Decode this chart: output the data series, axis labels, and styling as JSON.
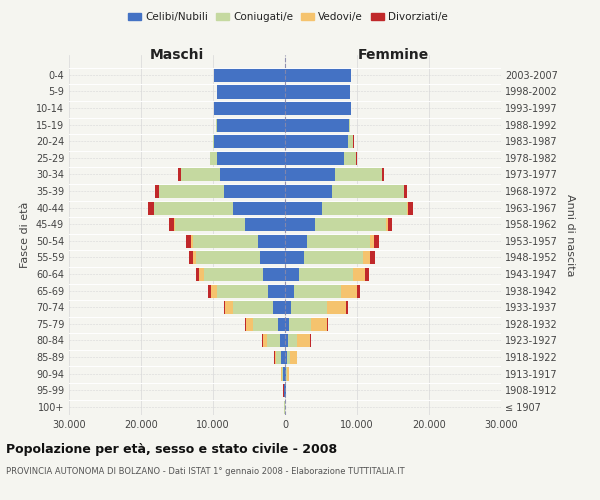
{
  "age_groups": [
    "100+",
    "95-99",
    "90-94",
    "85-89",
    "80-84",
    "75-79",
    "70-74",
    "65-69",
    "60-64",
    "55-59",
    "50-54",
    "45-49",
    "40-44",
    "35-39",
    "30-34",
    "25-29",
    "20-24",
    "15-19",
    "10-14",
    "5-9",
    "0-4"
  ],
  "birth_years": [
    "≤ 1907",
    "1908-1912",
    "1913-1917",
    "1918-1922",
    "1923-1927",
    "1928-1932",
    "1933-1937",
    "1938-1942",
    "1943-1947",
    "1948-1952",
    "1953-1957",
    "1958-1962",
    "1963-1967",
    "1968-1972",
    "1973-1977",
    "1978-1982",
    "1983-1987",
    "1988-1992",
    "1993-1997",
    "1998-2002",
    "2003-2007"
  ],
  "colors": {
    "celibi": "#4472c4",
    "coniugati": "#c5d9a0",
    "vedovi": "#f5c36e",
    "divorziati": "#c0282a"
  },
  "maschi_celibi": [
    50,
    120,
    280,
    500,
    700,
    1000,
    1700,
    2400,
    3000,
    3500,
    3800,
    5500,
    7200,
    8500,
    9000,
    9500,
    9800,
    9500,
    9800,
    9500,
    9800
  ],
  "maschi_coniugati": [
    20,
    60,
    200,
    700,
    1800,
    3500,
    5500,
    7000,
    8200,
    8800,
    9000,
    9800,
    11000,
    9000,
    5500,
    900,
    200,
    20,
    5,
    0,
    0
  ],
  "maschi_vedovi": [
    8,
    25,
    70,
    250,
    600,
    900,
    1100,
    900,
    700,
    500,
    250,
    130,
    60,
    25,
    8,
    3,
    1,
    0,
    0,
    0,
    0
  ],
  "maschi_divorziati": [
    3,
    8,
    15,
    25,
    45,
    90,
    180,
    380,
    480,
    550,
    650,
    750,
    750,
    550,
    350,
    70,
    15,
    3,
    0,
    0,
    0
  ],
  "femmine_celibi": [
    25,
    70,
    170,
    300,
    430,
    600,
    900,
    1300,
    1900,
    2600,
    3000,
    4200,
    5200,
    6500,
    7000,
    8200,
    8800,
    8900,
    9200,
    9000,
    9200
  ],
  "femmine_coniugati": [
    10,
    40,
    120,
    420,
    1300,
    3000,
    5000,
    6500,
    7600,
    8200,
    8800,
    9800,
    11800,
    10000,
    6500,
    1700,
    700,
    80,
    8,
    0,
    0
  ],
  "femmine_vedovi": [
    25,
    90,
    300,
    900,
    1800,
    2300,
    2600,
    2200,
    1600,
    1000,
    500,
    250,
    120,
    60,
    22,
    8,
    3,
    0,
    0,
    0,
    0
  ],
  "femmine_divorziati": [
    2,
    8,
    18,
    35,
    70,
    130,
    220,
    370,
    500,
    650,
    750,
    650,
    650,
    450,
    280,
    50,
    12,
    3,
    0,
    0,
    0
  ],
  "title": "Popolazione per età, sesso e stato civile - 2008",
  "subtitle": "PROVINCIA AUTONOMA DI BOLZANO - Dati ISTAT 1° gennaio 2008 - Elaborazione TUTTITALIA.IT",
  "xlabel_left": "Maschi",
  "xlabel_right": "Femmine",
  "ylabel_left": "Fasce di età",
  "ylabel_right": "Anni di nascita",
  "xlim": 30000,
  "xtick_labels": [
    "30.000",
    "20.000",
    "10.000",
    "0",
    "10.000",
    "20.000",
    "30.000"
  ],
  "legend_labels": [
    "Celibi/Nubili",
    "Coniugati/e",
    "Vedovi/e",
    "Divorziati/e"
  ],
  "background_color": "#f5f5f0",
  "grid_color": "#d8d8d8"
}
